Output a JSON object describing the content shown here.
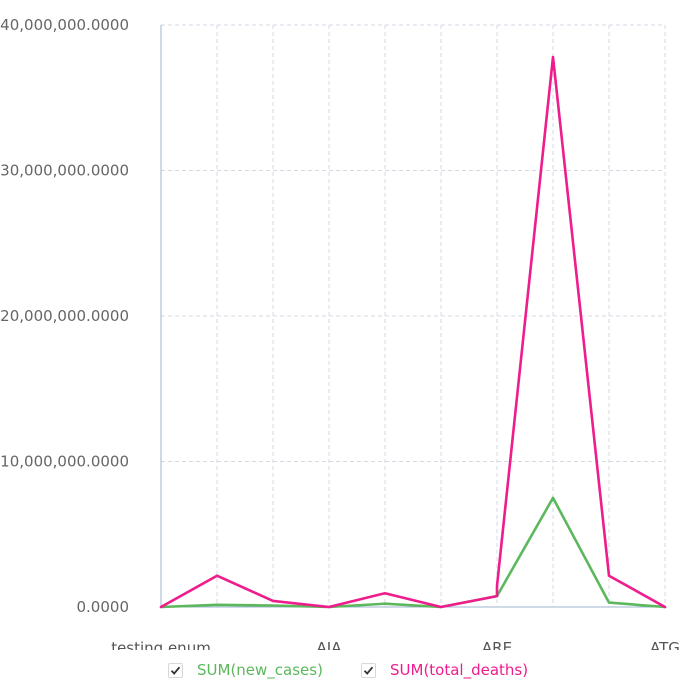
{
  "chart_data": {
    "type": "line",
    "x": [
      "testing enum",
      "",
      "",
      "AIA",
      "",
      "",
      "ARE",
      "",
      "",
      "ATG"
    ],
    "x_categories_count": 10,
    "x_tick_labels": [
      "testing enum",
      "AIA",
      "ARE",
      "ATG"
    ],
    "y_tick_labels": [
      "0.0000",
      "10,000,000.0000",
      "20,000,000.0000",
      "30,000,000.0000",
      "40,000,000.0000"
    ],
    "ylim": [
      0,
      40000000
    ],
    "grid": true,
    "legend_position": "bottom",
    "series": [
      {
        "name": "SUM(new_cases)",
        "color": "#5cb85c",
        "points": [
          {
            "xi": 0,
            "y": 0
          },
          {
            "xi": 1,
            "y": 150000
          },
          {
            "xi": 2,
            "y": 100000
          },
          {
            "xi": 3,
            "y": 0
          },
          {
            "xi": 4,
            "y": 230000
          },
          {
            "xi": 5,
            "y": 0
          },
          {
            "xi": 6,
            "y": 750000
          },
          {
            "xi": 7,
            "y": 7500000
          },
          {
            "xi": 8,
            "y": 300000
          },
          {
            "xi": 9,
            "y": 0
          }
        ]
      },
      {
        "name": "SUM(total_deaths)",
        "color": "#ee1c8c",
        "points": [
          {
            "xi": 0,
            "y": 0
          },
          {
            "xi": 1,
            "y": 2150000
          },
          {
            "xi": 2,
            "y": 420000
          },
          {
            "xi": 3,
            "y": 0
          },
          {
            "xi": 4,
            "y": 950000
          },
          {
            "xi": 5,
            "y": 0
          },
          {
            "xi": 6,
            "y": 750000
          },
          {
            "xi": 6,
            "y": 1450000
          },
          {
            "xi": 7,
            "y": 37800000
          },
          {
            "xi": 8,
            "y": 2150000
          },
          {
            "xi": 9,
            "y": 0
          }
        ]
      }
    ]
  },
  "legend": {
    "items": [
      {
        "label": "SUM(new_cases)",
        "checked": true,
        "color": "#5cb85c"
      },
      {
        "label": "SUM(total_deaths)",
        "checked": true,
        "color": "#ee1c8c"
      }
    ]
  }
}
